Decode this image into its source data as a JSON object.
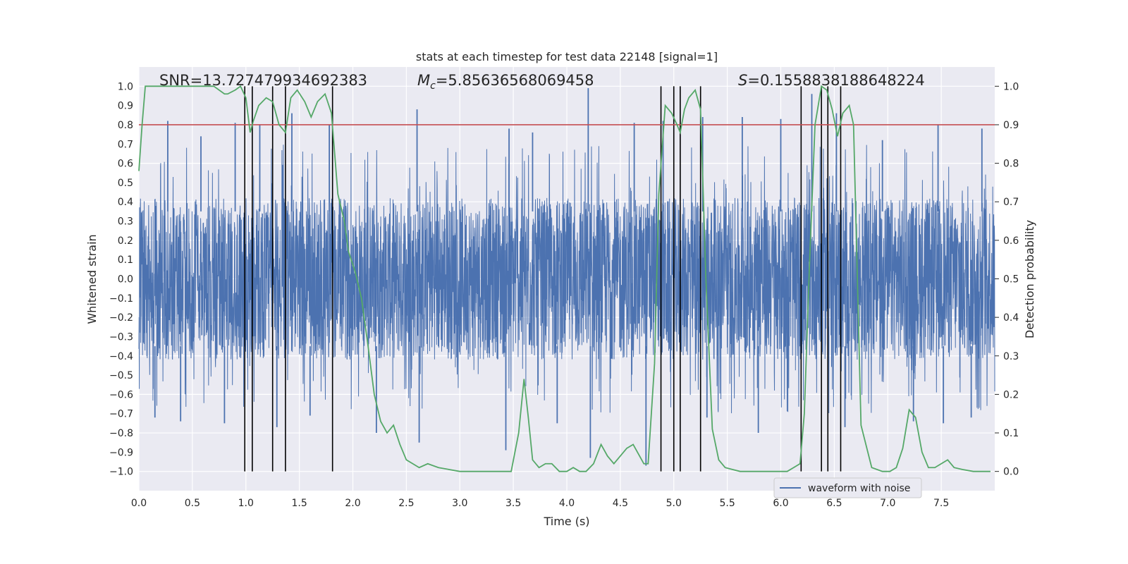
{
  "chart_data": {
    "type": "line",
    "title": "stats at each timestep for test data 22148 [signal=1]",
    "xlabel": "Time (s)",
    "ylabel": "Whitened strain",
    "y2label": "Detection probability",
    "xlim": [
      0.0,
      8.0
    ],
    "ylim": [
      -1.1,
      1.1
    ],
    "y2lim": [
      -0.05,
      1.05
    ],
    "xticks": [
      "0.0",
      "0.5",
      "1.0",
      "1.5",
      "2.0",
      "2.5",
      "3.0",
      "3.5",
      "4.0",
      "4.5",
      "5.0",
      "5.5",
      "6.0",
      "6.5",
      "7.0",
      "7.5"
    ],
    "yticks": [
      "−1.0",
      "−0.9",
      "−0.8",
      "−0.7",
      "−0.6",
      "−0.5",
      "−0.4",
      "−0.3",
      "−0.2",
      "−0.1",
      "0.0",
      "0.1",
      "0.2",
      "0.3",
      "0.4",
      "0.5",
      "0.6",
      "0.7",
      "0.8",
      "0.9",
      "1.0"
    ],
    "y2ticks": [
      "0.0",
      "0.1",
      "0.2",
      "0.3",
      "0.4",
      "0.5",
      "0.6",
      "0.7",
      "0.8",
      "0.9",
      "1.0"
    ],
    "grid": true,
    "legend": {
      "placement": "lower-right",
      "entries": [
        "waveform with noise"
      ]
    },
    "annotations": {
      "snr": "SNR=13.727479934692383",
      "mc_symbol": "M",
      "mc_sub": "c",
      "mc_value": "=5.85636568069458",
      "s_symbol": "S",
      "s_value": "=0.1558838188648224"
    },
    "threshold": {
      "y2": 0.9,
      "color": "#c44e52"
    },
    "vertical_lines_x": [
      0.99,
      1.06,
      1.25,
      1.37,
      1.81,
      4.88,
      5.0,
      5.06,
      5.25,
      6.19,
      6.38,
      6.44,
      6.56
    ],
    "vertical_lines_range": [
      -1.0,
      1.0
    ],
    "series": [
      {
        "name": "waveform with noise",
        "color": "#4c72b0",
        "style": "dense noise, roughly ±0.4 with peaks reaching ±1.0",
        "peaks_x": [
          0.27,
          0.58,
          0.9,
          1.13,
          1.43,
          1.78,
          2.6,
          3.46,
          3.68,
          4.2,
          4.63,
          4.9,
          5.27,
          5.64,
          6.0,
          6.29,
          6.52,
          6.95,
          7.47,
          7.88
        ],
        "peaks_y": [
          0.82,
          0.74,
          0.81,
          0.8,
          0.86,
          0.8,
          0.88,
          0.78,
          0.76,
          0.99,
          0.81,
          0.82,
          0.84,
          0.84,
          0.83,
          0.96,
          0.86,
          0.72,
          0.8,
          0.78
        ],
        "troughs_x": [
          0.15,
          0.39,
          0.8,
          1.29,
          1.6,
          2.22,
          2.62,
          3.43,
          3.91,
          4.22,
          4.74,
          5.31,
          5.79,
          6.6,
          7.24,
          7.52,
          7.78
        ],
        "troughs_y": [
          -0.72,
          -0.74,
          -0.75,
          -0.77,
          -0.71,
          -0.8,
          -0.85,
          -0.89,
          -0.75,
          -0.93,
          -0.97,
          -0.72,
          -0.8,
          -0.77,
          -0.74,
          -0.75,
          -0.72
        ]
      },
      {
        "name": "",
        "axis": "right",
        "color": "#55a868",
        "x": [
          0.0,
          0.03,
          0.06,
          0.12,
          0.2,
          0.3,
          0.4,
          0.5,
          0.6,
          0.7,
          0.75,
          0.8,
          0.83,
          0.9,
          0.95,
          1.0,
          1.04,
          1.07,
          1.12,
          1.19,
          1.25,
          1.31,
          1.37,
          1.42,
          1.48,
          1.55,
          1.61,
          1.67,
          1.74,
          1.8,
          1.86,
          1.92,
          1.96,
          2.02,
          2.08,
          2.14,
          2.2,
          2.26,
          2.32,
          2.38,
          2.44,
          2.5,
          2.56,
          2.62,
          2.7,
          2.8,
          2.9,
          3.0,
          3.2,
          3.4,
          3.48,
          3.55,
          3.6,
          3.64,
          3.68,
          3.74,
          3.8,
          3.86,
          3.93,
          4.0,
          4.06,
          4.12,
          4.18,
          4.25,
          4.32,
          4.38,
          4.44,
          4.5,
          4.56,
          4.62,
          4.68,
          4.72,
          4.76,
          4.82,
          4.86,
          4.92,
          4.98,
          5.03,
          5.06,
          5.1,
          5.14,
          5.2,
          5.25,
          5.3,
          5.36,
          5.42,
          5.48,
          5.55,
          5.62,
          5.7,
          5.8,
          5.9,
          6.0,
          6.06,
          6.12,
          6.18,
          6.22,
          6.27,
          6.32,
          6.38,
          6.43,
          6.48,
          6.53,
          6.58,
          6.64,
          6.68,
          6.75,
          6.85,
          6.95,
          7.02,
          7.08,
          7.14,
          7.2,
          7.26,
          7.32,
          7.38,
          7.44,
          7.5,
          7.56,
          7.62,
          7.7,
          7.8,
          7.9,
          7.96
        ],
        "y": [
          0.78,
          0.9,
          1.0,
          1.0,
          1.0,
          1.0,
          1.0,
          1.0,
          1.0,
          1.0,
          0.99,
          0.98,
          0.98,
          0.99,
          1.0,
          0.97,
          0.88,
          0.91,
          0.95,
          0.97,
          0.96,
          0.9,
          0.88,
          0.97,
          0.99,
          0.96,
          0.92,
          0.96,
          0.98,
          0.93,
          0.72,
          0.65,
          0.57,
          0.52,
          0.45,
          0.33,
          0.2,
          0.13,
          0.1,
          0.12,
          0.07,
          0.03,
          0.02,
          0.01,
          0.02,
          0.01,
          0.005,
          0.0,
          0.0,
          0.0,
          0.0,
          0.1,
          0.24,
          0.14,
          0.03,
          0.01,
          0.02,
          0.02,
          0.0,
          0.0,
          0.01,
          0.0,
          0.0,
          0.02,
          0.07,
          0.04,
          0.02,
          0.04,
          0.06,
          0.07,
          0.04,
          0.02,
          0.02,
          0.28,
          0.72,
          0.95,
          0.93,
          0.9,
          0.88,
          0.94,
          0.97,
          0.99,
          0.94,
          0.5,
          0.11,
          0.03,
          0.01,
          0.005,
          0.0,
          0.0,
          0.0,
          0.0,
          0.0,
          0.0,
          0.01,
          0.02,
          0.15,
          0.55,
          0.9,
          1.0,
          0.99,
          0.94,
          0.87,
          0.93,
          0.95,
          0.9,
          0.12,
          0.01,
          0.0,
          0.0,
          0.01,
          0.06,
          0.16,
          0.14,
          0.05,
          0.01,
          0.01,
          0.02,
          0.03,
          0.01,
          0.005,
          0.0,
          0.0,
          0.0
        ]
      }
    ]
  }
}
